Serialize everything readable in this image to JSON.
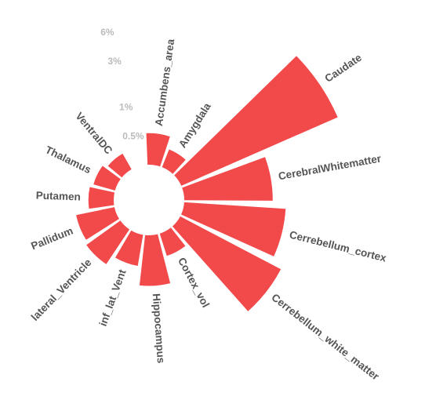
{
  "chart_data": {
    "type": "radial_bar",
    "log_scale": true,
    "color": "#f2494b",
    "categories": [
      "Accumbens_area",
      "Amygdala",
      "Caudate",
      "CerebralWhitematter",
      "Cerrebellum_cortex",
      "Cerrebellum_white_matter",
      "Cortex_vol",
      "Hippocampus",
      "inf_lat_Vent",
      "lateral_Ventricle",
      "Pallidum",
      "Putamen",
      "Thalamus",
      "VentralDC"
    ],
    "values": [
      0.52,
      0.39,
      13.2,
      1.95,
      2.65,
      3.5,
      0.43,
      0.81,
      0.52,
      0.66,
      0.62,
      0.45,
      0.42,
      0.38
    ],
    "ylim": [
      0.25,
      14
    ],
    "yticks": [
      {
        "value": 0.5,
        "label": "0.5%"
      },
      {
        "value": 1,
        "label": "1%"
      },
      {
        "value": 3,
        "label": "3%"
      },
      {
        "value": 6,
        "label": "6%"
      }
    ]
  }
}
